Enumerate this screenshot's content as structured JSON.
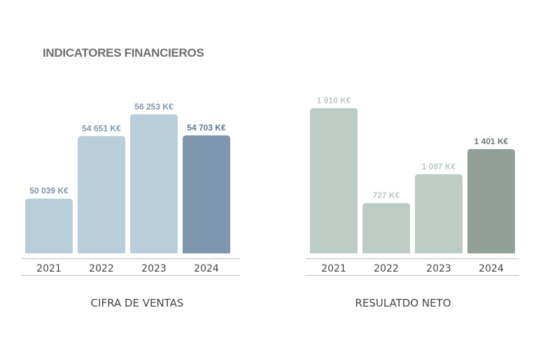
{
  "title": "INDICATORES FINANCIEROS",
  "chart_data": [
    {
      "type": "bar",
      "caption": "CIFRA DE VENTAS",
      "categories": [
        "2021",
        "2022",
        "2023",
        "2024"
      ],
      "values": [
        50039,
        54651,
        56253,
        54703
      ],
      "value_labels": [
        "50 039 K€",
        "54 651 K€",
        "56 253 K€",
        "54 703 K€"
      ],
      "unit": "K€",
      "colors": [
        "#bacdda",
        "#bacdda",
        "#bacdda",
        "#7f97ae"
      ],
      "label_colors": [
        "#7f97ae",
        "#7f97ae",
        "#7f97ae",
        "#5f7893"
      ],
      "ylim": [
        46000,
        57300
      ]
    },
    {
      "type": "bar",
      "caption": "RESULATDO NETO",
      "categories": [
        "2021",
        "2022",
        "2023",
        "2024"
      ],
      "values": [
        1910,
        727,
        1087,
        1401
      ],
      "value_labels": [
        "1 910 K€",
        "727 K€",
        "1 087 K€",
        "1 401 K€"
      ],
      "unit": "K€",
      "colors": [
        "#bccbc3",
        "#bccbc3",
        "#bccbc3",
        "#92a198"
      ],
      "label_colors": [
        "#bccbc3",
        "#bccbc3",
        "#bccbc3",
        "#6f7d75"
      ],
      "ylim": [
        100,
        2010
      ]
    }
  ]
}
